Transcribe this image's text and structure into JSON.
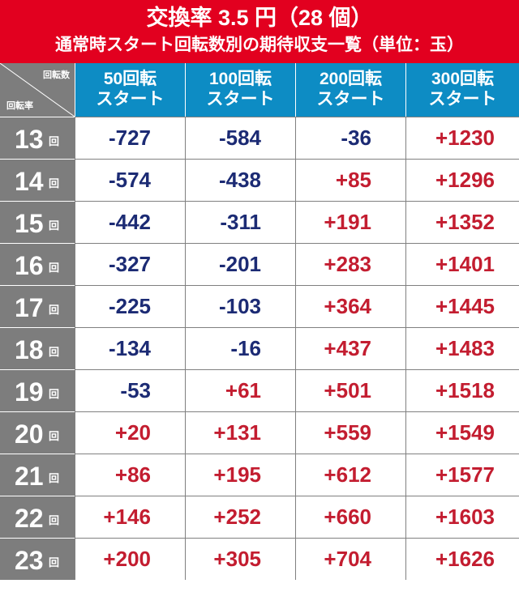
{
  "header": {
    "title": "交換率 3.5 円（28 個）",
    "subtitle": "通常時スタート回転数別の期待収支一覧（単位：玉）"
  },
  "corner": {
    "top_label": "回転数",
    "bottom_label": "回転率"
  },
  "columns": [
    {
      "line1": "50回転",
      "line2": "スタート"
    },
    {
      "line1": "100回転",
      "line2": "スタート"
    },
    {
      "line1": "200回転",
      "line2": "スタート"
    },
    {
      "line1": "300回転",
      "line2": "スタート"
    }
  ],
  "row_unit": "回",
  "rows": [
    {
      "rate": "13",
      "values": [
        "-727",
        "-584",
        "-36",
        "+1230"
      ]
    },
    {
      "rate": "14",
      "values": [
        "-574",
        "-438",
        "+85",
        "+1296"
      ]
    },
    {
      "rate": "15",
      "values": [
        "-442",
        "-311",
        "+191",
        "+1352"
      ]
    },
    {
      "rate": "16",
      "values": [
        "-327",
        "-201",
        "+283",
        "+1401"
      ]
    },
    {
      "rate": "17",
      "values": [
        "-225",
        "-103",
        "+364",
        "+1445"
      ]
    },
    {
      "rate": "18",
      "values": [
        "-134",
        "-16",
        "+437",
        "+1483"
      ]
    },
    {
      "rate": "19",
      "values": [
        "-53",
        "+61",
        "+501",
        "+1518"
      ]
    },
    {
      "rate": "20",
      "values": [
        "+20",
        "+131",
        "+559",
        "+1549"
      ]
    },
    {
      "rate": "21",
      "values": [
        "+86",
        "+195",
        "+612",
        "+1577"
      ]
    },
    {
      "rate": "22",
      "values": [
        "+146",
        "+252",
        "+660",
        "+1603"
      ]
    },
    {
      "rate": "23",
      "values": [
        "+200",
        "+305",
        "+704",
        "+1626"
      ]
    }
  ],
  "colors": {
    "banner": "#e2001f",
    "column_header": "#0d8cc4",
    "row_header": "#7d7d7d",
    "negative": "#1c2b74",
    "positive": "#c31d30"
  }
}
